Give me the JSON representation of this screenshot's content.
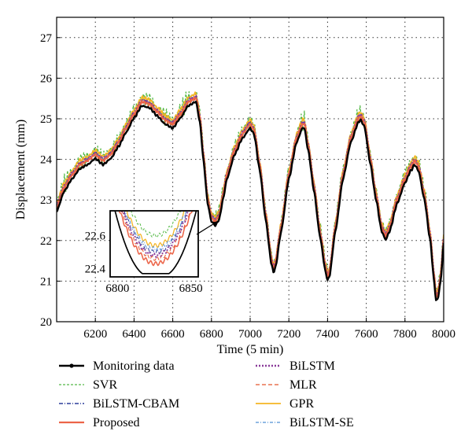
{
  "chart_data": {
    "type": "line",
    "xlabel": "Time (5 min)",
    "ylabel": "Displacement (mm)",
    "xlim": [
      6000,
      8000
    ],
    "ylim": [
      20,
      27.5
    ],
    "xticks": [
      6200,
      6400,
      6600,
      6800,
      7000,
      7200,
      7400,
      7600,
      7800,
      8000
    ],
    "yticks": [
      20,
      21,
      22,
      23,
      24,
      25,
      26,
      27
    ],
    "grid": "dotted",
    "legend_position": "bottom",
    "base_profile": {
      "x": [
        6000,
        6040,
        6080,
        6120,
        6160,
        6200,
        6240,
        6280,
        6320,
        6360,
        6400,
        6440,
        6480,
        6520,
        6560,
        6600,
        6640,
        6680,
        6720,
        6740,
        6760,
        6780,
        6800,
        6820,
        6840,
        6860,
        6880,
        6920,
        6960,
        7000,
        7020,
        7050,
        7080,
        7110,
        7120,
        7130,
        7160,
        7200,
        7240,
        7270,
        7280,
        7300,
        7330,
        7360,
        7390,
        7400,
        7410,
        7440,
        7480,
        7520,
        7560,
        7570,
        7590,
        7620,
        7650,
        7680,
        7700,
        7720,
        7760,
        7800,
        7830,
        7850,
        7870,
        7900,
        7930,
        7950,
        7960,
        7970,
        7985,
        8000
      ],
      "y": [
        22.8,
        23.3,
        23.6,
        23.85,
        23.95,
        24.1,
        23.95,
        24.1,
        24.4,
        24.75,
        25.1,
        25.4,
        25.35,
        25.15,
        24.95,
        24.85,
        25.1,
        25.4,
        25.5,
        25.0,
        24.0,
        23.0,
        22.55,
        22.45,
        22.6,
        23.1,
        23.6,
        24.2,
        24.6,
        24.85,
        24.7,
        23.8,
        22.6,
        21.5,
        21.3,
        21.4,
        22.3,
        23.6,
        24.5,
        24.85,
        24.85,
        24.3,
        23.3,
        22.2,
        21.3,
        21.1,
        21.2,
        22.3,
        23.6,
        24.5,
        25.0,
        25.05,
        24.9,
        24.0,
        23.1,
        22.3,
        22.1,
        22.3,
        23.0,
        23.5,
        23.8,
        23.95,
        23.8,
        23.1,
        22.1,
        21.1,
        20.6,
        20.65,
        21.1,
        22.0
      ]
    },
    "series": [
      {
        "name": "Monitoring data",
        "color": "#000000",
        "dash": "",
        "width": 2.4,
        "marker": true,
        "offset": -0.08,
        "noise": 0.03
      },
      {
        "name": "SVR",
        "color": "#55b947",
        "dash": "3,2",
        "width": 1.3,
        "marker": false,
        "offset": 0.1,
        "noise": 0.25
      },
      {
        "name": "BiLSTM-CBAM",
        "color": "#2c3d9a",
        "dash": "5,2,1,2",
        "width": 1.4,
        "marker": false,
        "offset": 0.05,
        "noise": 0.04
      },
      {
        "name": "Proposed",
        "color": "#ec6448",
        "dash": "",
        "width": 2.2,
        "marker": false,
        "offset": 0.02,
        "noise": 0.03
      },
      {
        "name": "BiLSTM",
        "color": "#8a3a99",
        "dash": "2,2",
        "width": 2.6,
        "marker": false,
        "offset": 0.06,
        "noise": 0.03
      },
      {
        "name": "MLR",
        "color": "#e3572f",
        "dash": "5,3",
        "width": 1.3,
        "marker": false,
        "offset": 0.0,
        "noise": 0.08
      },
      {
        "name": "GPR",
        "color": "#f5b522",
        "dash": "",
        "width": 1.8,
        "marker": false,
        "offset": 0.12,
        "noise": 0.06
      },
      {
        "name": "BiLSTM-SE",
        "color": "#4f8fd4",
        "dash": "4,2,1,2",
        "width": 1.3,
        "marker": false,
        "offset": 0.04,
        "noise": 0.04
      }
    ],
    "inset": {
      "xlim": [
        6795,
        6855
      ],
      "ylim": [
        22.35,
        22.75
      ],
      "xticks": [
        6800,
        6850
      ],
      "yticks": [
        22.4,
        22.6
      ],
      "arrow_target": {
        "x": 6840,
        "y": 22.55
      }
    }
  }
}
